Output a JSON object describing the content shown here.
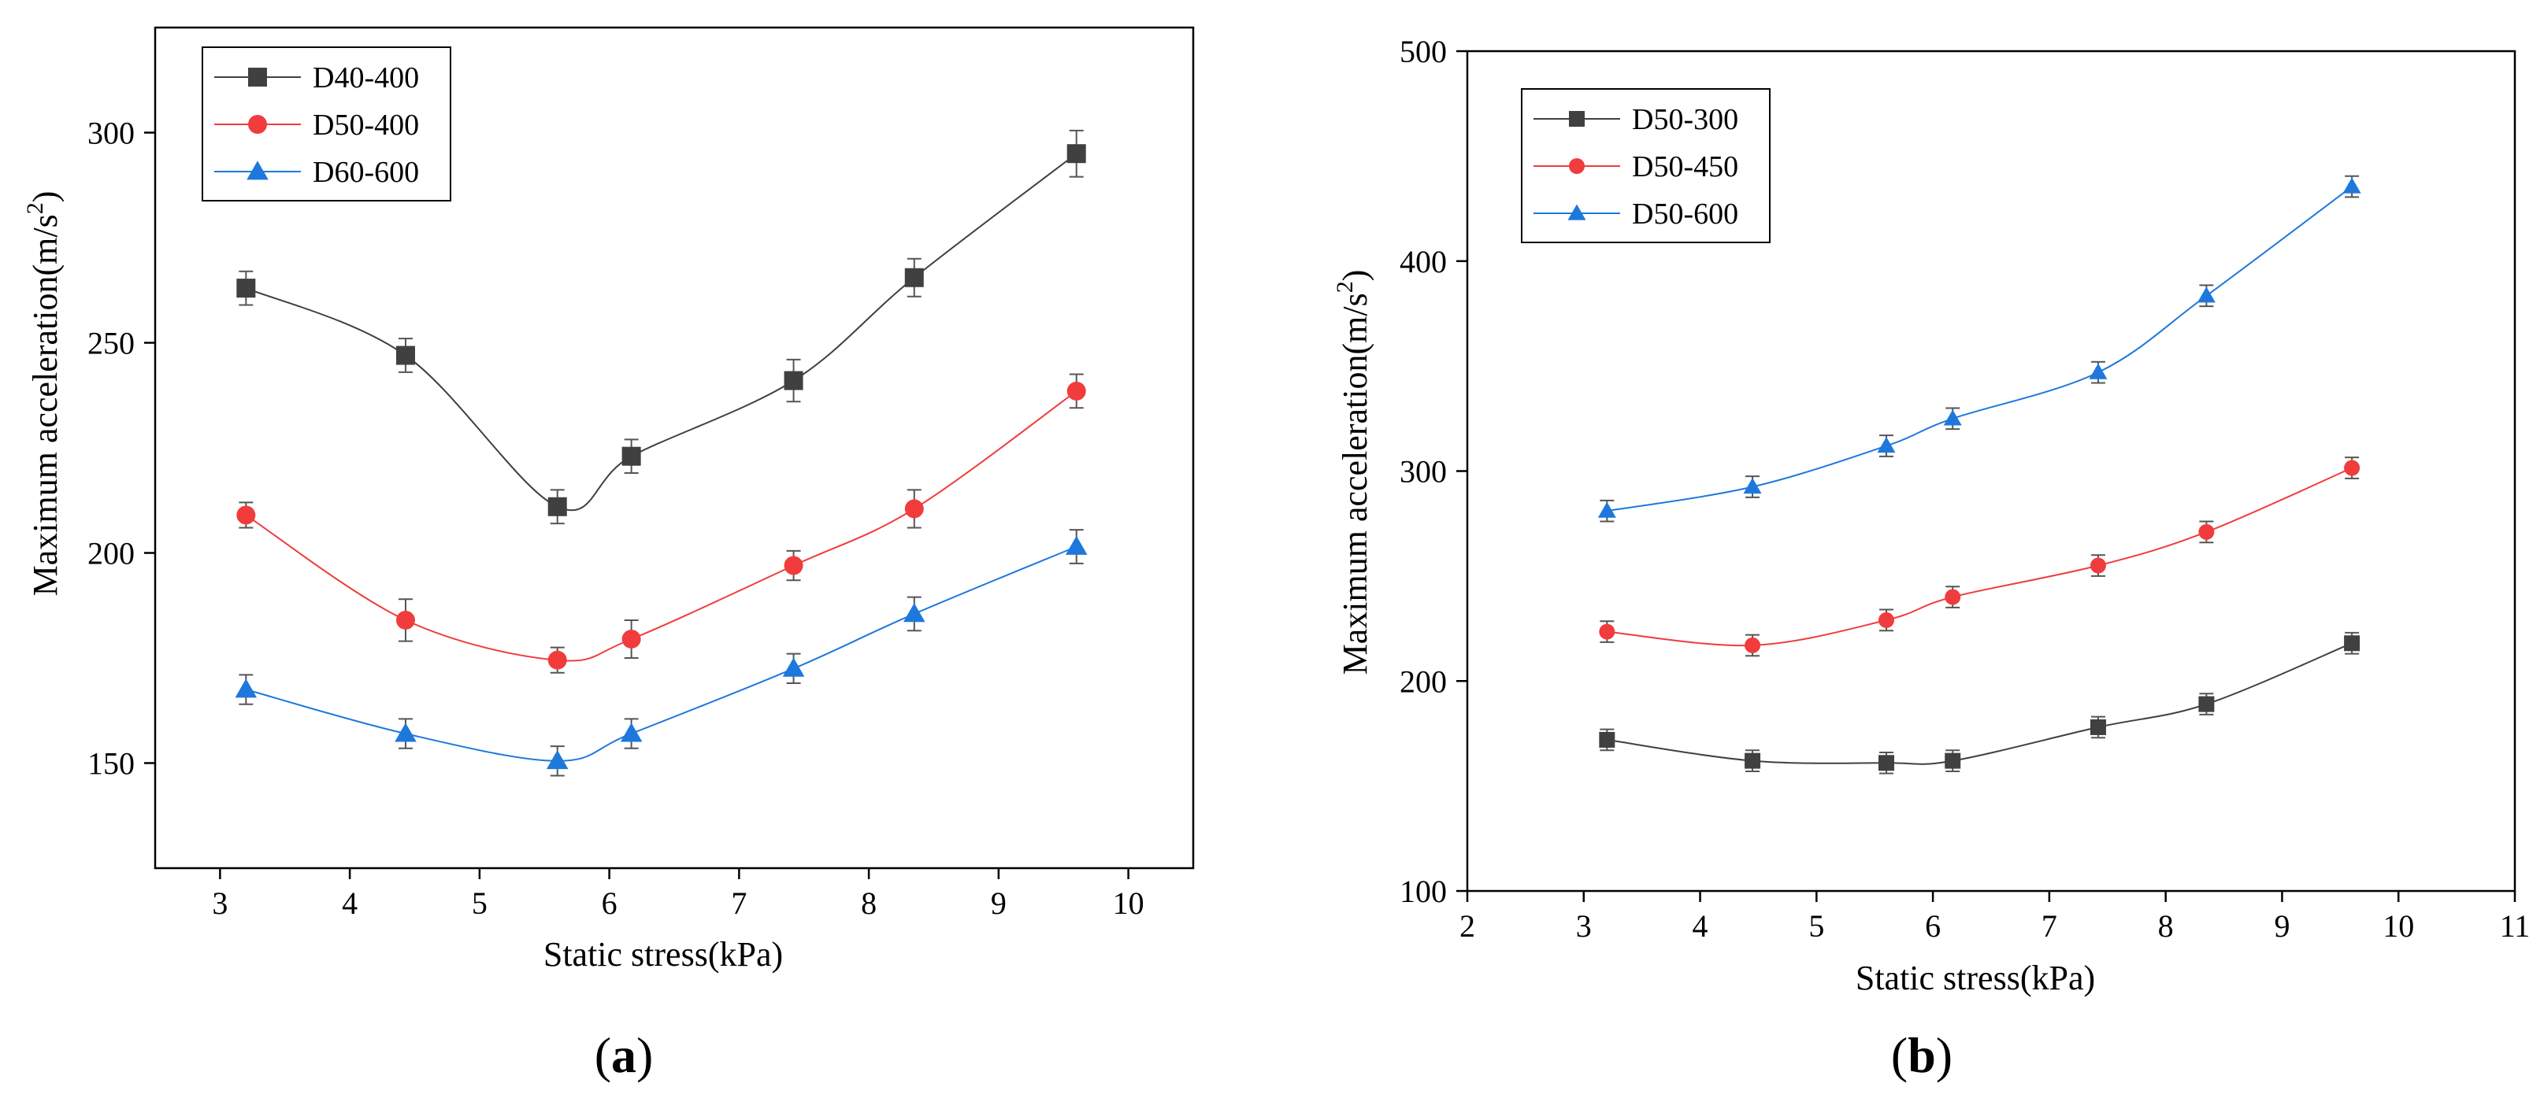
{
  "chart_data": [
    {
      "type": "line",
      "panel_label": "a",
      "xlabel": "Static stress(kPa)",
      "ylabel_main": "Maximum acceleration(m/s",
      "ylabel_sup": "2",
      "ylabel_close": ")",
      "xlim": [
        2.5,
        10.5
      ],
      "ylim": [
        125,
        325
      ],
      "xticks": [
        3,
        4,
        5,
        6,
        7,
        8,
        9,
        10
      ],
      "yticks": [
        150,
        200,
        250,
        300
      ],
      "legend_position": "top-left",
      "x": [
        3.2,
        4.43,
        5.6,
        6.17,
        7.42,
        8.35,
        9.6
      ],
      "series": [
        {
          "name": "D40-400",
          "color": "#404040",
          "marker": "square",
          "values": [
            263,
            247,
            211,
            223,
            241,
            265.5,
            295
          ],
          "errors": [
            4,
            4,
            4,
            4,
            5,
            4.5,
            5.5
          ]
        },
        {
          "name": "D50-400",
          "color": "#f03c3c",
          "marker": "circle",
          "values": [
            209,
            184,
            174.5,
            179.5,
            197,
            210.5,
            238.5
          ],
          "errors": [
            3,
            5,
            3,
            4.5,
            3.5,
            4.5,
            4
          ]
        },
        {
          "name": "D60-600",
          "color": "#1e78dc",
          "marker": "triangle",
          "values": [
            167.5,
            157,
            150.5,
            157,
            172.5,
            185.5,
            201.5
          ],
          "errors": [
            3.5,
            3.5,
            3.5,
            3.5,
            3.5,
            4,
            4
          ]
        }
      ]
    },
    {
      "type": "line",
      "panel_label": "b",
      "xlabel": "Static stress(kPa)",
      "ylabel_main": "Maximum acceleration(m/s",
      "ylabel_sup": "2",
      "ylabel_close": ")",
      "xlim": [
        2,
        11
      ],
      "ylim": [
        100,
        500
      ],
      "xticks": [
        2,
        3,
        4,
        5,
        6,
        7,
        8,
        9,
        10,
        11
      ],
      "yticks": [
        100,
        200,
        300,
        400,
        500
      ],
      "legend_position": "top-left",
      "x": [
        3.2,
        4.45,
        5.6,
        6.17,
        7.42,
        8.35,
        9.6
      ],
      "series": [
        {
          "name": "D50-300",
          "color": "#404040",
          "marker": "square",
          "values": [
            172,
            162,
            161,
            162,
            178,
            189,
            218
          ],
          "errors": [
            5,
            5,
            5,
            5,
            5,
            5,
            5
          ]
        },
        {
          "name": "D50-450",
          "color": "#f03c3c",
          "marker": "circle",
          "values": [
            223.5,
            217,
            229,
            240,
            255,
            271,
            301.5
          ],
          "errors": [
            5,
            5,
            5,
            5,
            5,
            5,
            5
          ]
        },
        {
          "name": "D50-600",
          "color": "#1e78dc",
          "marker": "triangle",
          "values": [
            281,
            292.5,
            312,
            325,
            347,
            383.5,
            435.5
          ],
          "errors": [
            5,
            5,
            5,
            5,
            5,
            5,
            5
          ]
        }
      ]
    }
  ]
}
